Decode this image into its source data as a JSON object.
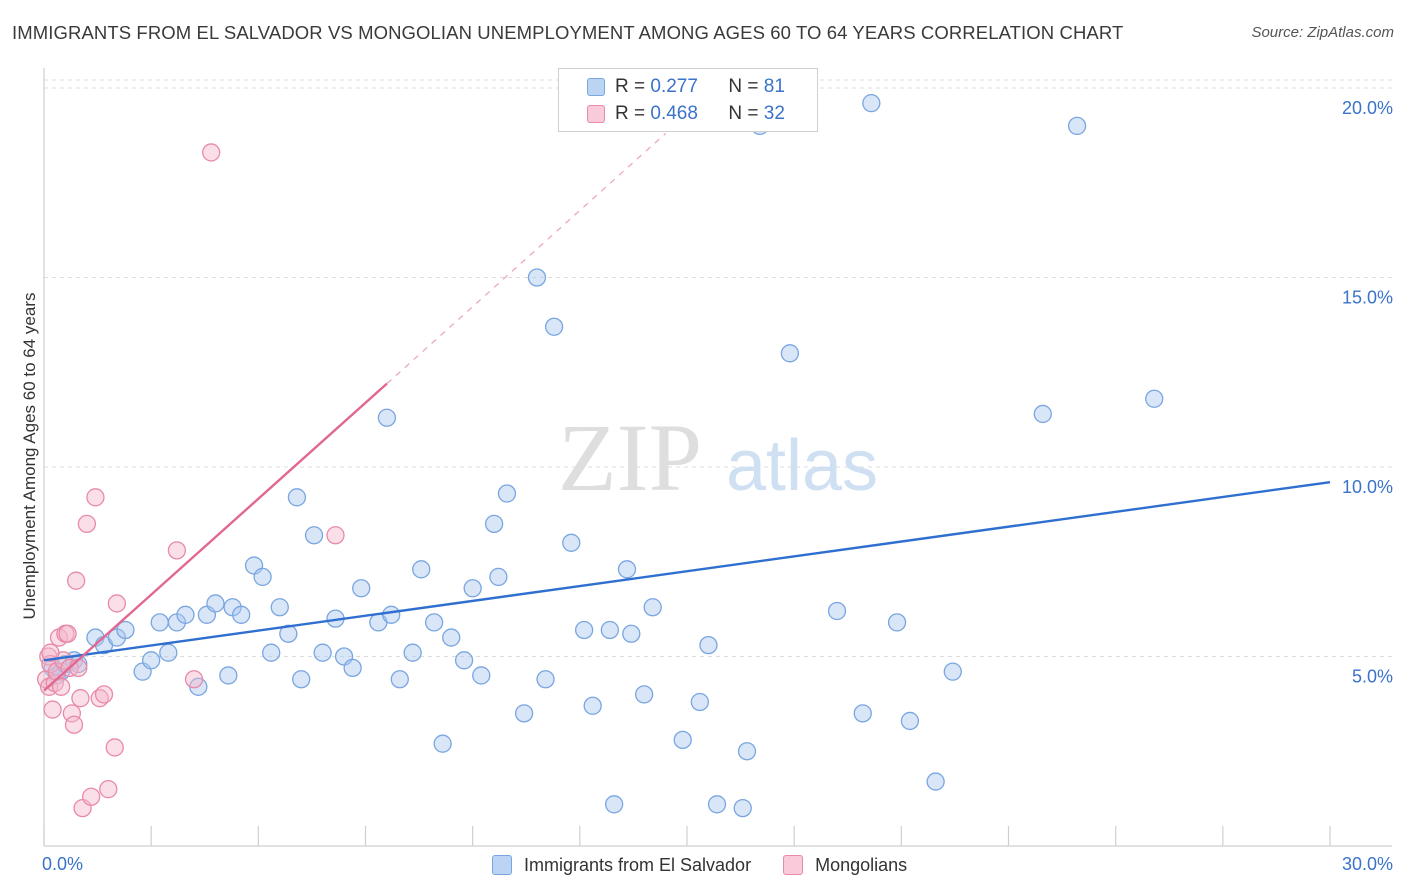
{
  "title": "IMMIGRANTS FROM EL SALVADOR VS MONGOLIAN UNEMPLOYMENT AMONG AGES 60 TO 64 YEARS CORRELATION CHART",
  "source": "Source: ZipAtlas.com",
  "watermark": {
    "zip": "ZIP",
    "atlas": "atlas"
  },
  "legend_top": {
    "r_label": "R =",
    "n_label": "N =",
    "rows": [
      {
        "r": "0.277",
        "n": "81"
      },
      {
        "r": "0.468",
        "n": "32"
      }
    ]
  },
  "colors": {
    "blue_fill": "#a9c8ef",
    "blue_stroke": "#7aa6e0",
    "blue_line": "#2f6fd0",
    "pink_fill": "#f5b8cc",
    "pink_stroke": "#e88aaa",
    "pink_line": "#e06892",
    "grid": "#dcdcdc",
    "tick_label": "#3a73c9"
  },
  "chart_data": {
    "type": "scatter",
    "title": "IMMIGRANTS FROM EL SALVADOR VS MONGOLIAN UNEMPLOYMENT AMONG AGES 60 TO 64 YEARS CORRELATION CHART",
    "xlabel": "",
    "ylabel": "Unemployment Among Ages 60 to 64 years",
    "xlim": [
      0,
      30
    ],
    "ylim": [
      0,
      20
    ],
    "x_tick_labels": [
      {
        "value": 0,
        "label": "0.0%"
      },
      {
        "value": 30,
        "label": "30.0%"
      }
    ],
    "y_tick_labels": [
      {
        "value": 5,
        "label": "5.0%"
      },
      {
        "value": 10,
        "label": "10.0%"
      },
      {
        "value": 15,
        "label": "15.0%"
      },
      {
        "value": 20,
        "label": "20.0%"
      }
    ],
    "grid": true,
    "legend_position": "bottom",
    "series": [
      {
        "name": "Immigrants from El Salvador",
        "color": "#a9c8ef",
        "trend": {
          "x0": 0,
          "y0": 4.9,
          "x1": 30,
          "y1": 9.6,
          "style": "solid"
        },
        "points": [
          [
            0.2,
            4.7
          ],
          [
            0.3,
            4.5
          ],
          [
            0.4,
            4.6
          ],
          [
            0.5,
            4.8
          ],
          [
            0.7,
            4.9
          ],
          [
            0.8,
            4.8
          ],
          [
            1.2,
            5.5
          ],
          [
            1.4,
            5.3
          ],
          [
            1.7,
            5.5
          ],
          [
            1.9,
            5.7
          ],
          [
            2.3,
            4.6
          ],
          [
            2.5,
            4.9
          ],
          [
            2.7,
            5.9
          ],
          [
            2.9,
            5.1
          ],
          [
            3.1,
            5.9
          ],
          [
            3.3,
            6.1
          ],
          [
            3.6,
            4.2
          ],
          [
            3.8,
            6.1
          ],
          [
            4.0,
            6.4
          ],
          [
            4.3,
            4.5
          ],
          [
            4.4,
            6.3
          ],
          [
            4.6,
            6.1
          ],
          [
            4.9,
            7.4
          ],
          [
            5.1,
            7.1
          ],
          [
            5.3,
            5.1
          ],
          [
            5.5,
            6.3
          ],
          [
            5.7,
            5.6
          ],
          [
            5.9,
            9.2
          ],
          [
            6.0,
            4.4
          ],
          [
            6.3,
            8.2
          ],
          [
            6.5,
            5.1
          ],
          [
            6.8,
            6.0
          ],
          [
            7.0,
            5.0
          ],
          [
            7.2,
            4.7
          ],
          [
            7.4,
            6.8
          ],
          [
            7.8,
            5.9
          ],
          [
            8.0,
            11.3
          ],
          [
            8.1,
            6.1
          ],
          [
            8.3,
            4.4
          ],
          [
            8.6,
            5.1
          ],
          [
            8.8,
            7.3
          ],
          [
            9.1,
            5.9
          ],
          [
            9.3,
            2.7
          ],
          [
            9.5,
            5.5
          ],
          [
            9.8,
            4.9
          ],
          [
            10.0,
            6.8
          ],
          [
            10.2,
            4.5
          ],
          [
            10.5,
            8.5
          ],
          [
            10.6,
            7.1
          ],
          [
            10.8,
            9.3
          ],
          [
            11.2,
            3.5
          ],
          [
            11.5,
            15.0
          ],
          [
            11.7,
            4.4
          ],
          [
            11.9,
            13.7
          ],
          [
            12.3,
            8.0
          ],
          [
            12.6,
            5.7
          ],
          [
            12.8,
            3.7
          ],
          [
            13.2,
            5.7
          ],
          [
            13.3,
            1.1
          ],
          [
            13.6,
            7.3
          ],
          [
            13.7,
            5.6
          ],
          [
            14.0,
            4.0
          ],
          [
            14.2,
            6.3
          ],
          [
            14.9,
            2.8
          ],
          [
            15.3,
            3.8
          ],
          [
            15.5,
            5.3
          ],
          [
            15.7,
            1.1
          ],
          [
            16.3,
            1.0
          ],
          [
            16.4,
            2.5
          ],
          [
            16.7,
            19.0
          ],
          [
            17.4,
            13.0
          ],
          [
            18.5,
            6.2
          ],
          [
            19.1,
            3.5
          ],
          [
            19.3,
            19.6
          ],
          [
            19.9,
            5.9
          ],
          [
            20.2,
            3.3
          ],
          [
            20.8,
            1.7
          ],
          [
            21.2,
            4.6
          ],
          [
            23.3,
            11.4
          ],
          [
            24.1,
            19.0
          ],
          [
            25.9,
            11.8
          ]
        ]
      },
      {
        "name": "Mongolians",
        "color": "#f5b8cc",
        "trend": {
          "x0": 0,
          "y0": 4.1,
          "x1": 8.0,
          "y1": 12.2,
          "style": "solid",
          "extended_to": [
            14.5,
            18.8
          ]
        },
        "points": [
          [
            0.05,
            4.4
          ],
          [
            0.1,
            5.0
          ],
          [
            0.12,
            4.2
          ],
          [
            0.15,
            4.8
          ],
          [
            0.2,
            3.6
          ],
          [
            0.25,
            4.3
          ],
          [
            0.3,
            4.6
          ],
          [
            0.35,
            5.5
          ],
          [
            0.4,
            4.2
          ],
          [
            0.45,
            4.9
          ],
          [
            0.5,
            5.6
          ],
          [
            0.55,
            5.6
          ],
          [
            0.6,
            4.7
          ],
          [
            0.65,
            3.5
          ],
          [
            0.7,
            3.2
          ],
          [
            0.75,
            7.0
          ],
          [
            0.8,
            4.7
          ],
          [
            0.85,
            3.9
          ],
          [
            0.9,
            1.0
          ],
          [
            1.0,
            8.5
          ],
          [
            1.1,
            1.3
          ],
          [
            1.2,
            9.2
          ],
          [
            1.3,
            3.9
          ],
          [
            1.4,
            4.0
          ],
          [
            1.5,
            1.5
          ],
          [
            1.65,
            2.6
          ],
          [
            1.7,
            6.4
          ],
          [
            3.1,
            7.8
          ],
          [
            3.5,
            4.4
          ],
          [
            3.9,
            18.3
          ],
          [
            6.8,
            8.2
          ],
          [
            0.15,
            5.1
          ]
        ]
      }
    ]
  }
}
